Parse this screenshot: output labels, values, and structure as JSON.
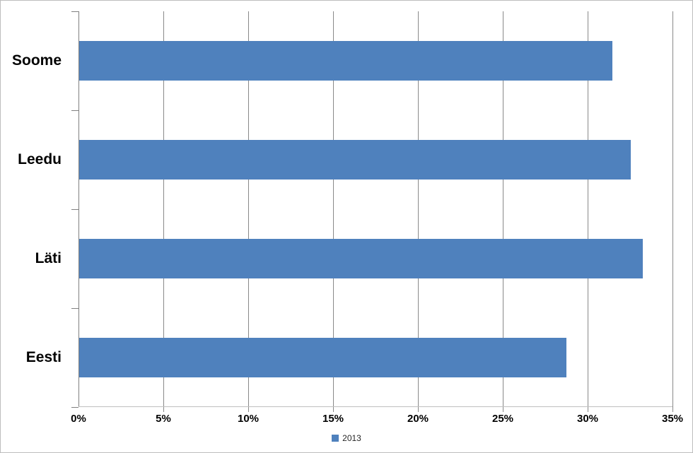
{
  "chart_data": {
    "type": "bar",
    "orientation": "horizontal",
    "title": "",
    "xlabel": "",
    "ylabel": "",
    "categories": [
      "Soome",
      "Leedu",
      "Läti",
      "Eesti"
    ],
    "series": [
      {
        "name": "2013",
        "values": [
          31.4,
          32.5,
          33.2,
          28.7
        ]
      }
    ],
    "x_ticks": [
      "0%",
      "5%",
      "10%",
      "15%",
      "20%",
      "25%",
      "30%",
      "35%"
    ],
    "xlim": [
      0,
      35
    ],
    "grid": "vertical-major",
    "legend": {
      "label": "2013",
      "position": "bottom-center"
    },
    "colors": {
      "bar": "#4f81bd",
      "gridline": "#898989",
      "category_axis": "#808080",
      "value_axis": "#bfbfbf",
      "text": "#000000",
      "frame_border": "#bdbdbd"
    }
  }
}
